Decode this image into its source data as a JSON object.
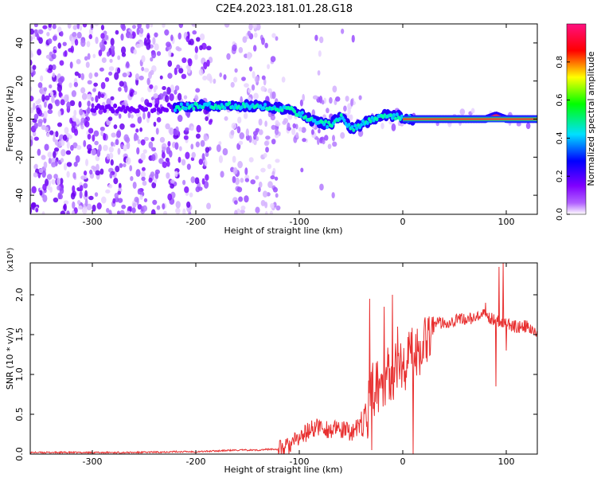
{
  "title": "C2E4.2023.181.01.28.G18",
  "chart_data": [
    {
      "type": "heatmap",
      "xlabel": "Height of straight line (km)",
      "ylabel": "Frequency (Hz)",
      "xlim": [
        -360,
        130
      ],
      "ylim": [
        -50,
        50
      ],
      "x_ticks": [
        -300,
        -200,
        -100,
        0,
        100
      ],
      "x_tick_labels": [
        "-300",
        "-200",
        "-100",
        "0",
        "100"
      ],
      "y_ticks": [
        -40,
        -20,
        0,
        20,
        40
      ],
      "y_tick_labels": [
        "-40",
        "-20",
        "0",
        "20",
        "40"
      ],
      "colorbar": {
        "label": "Normalized spectral amplitude",
        "range": [
          0,
          1
        ],
        "ticks": [
          0.0,
          0.2,
          0.4,
          0.6,
          0.8
        ],
        "tick_labels": [
          "0.0",
          "0.2",
          "0.4",
          "0.6",
          "0.8"
        ],
        "colormap": [
          "#f3e6ff",
          "#8000ff",
          "#0000ff",
          "#00ffff",
          "#00ff00",
          "#ffff00",
          "#ff0000",
          "#ff0080"
        ]
      },
      "ridge": {
        "x": [
          -220,
          -200,
          -180,
          -160,
          -140,
          -120,
          -110,
          -100,
          -90,
          -80,
          -70,
          -60,
          -50,
          -40,
          -30,
          -20,
          -10,
          0,
          10,
          20,
          40,
          60,
          80,
          90,
          100,
          120,
          130
        ],
        "freq": [
          6,
          7,
          7,
          7,
          7,
          6,
          5,
          3,
          0,
          -2,
          -3,
          2,
          -5,
          -3,
          0,
          2,
          2,
          1,
          0,
          0,
          0,
          0,
          0,
          2,
          0,
          0,
          0
        ]
      }
    },
    {
      "type": "line",
      "xlabel": "Height of straight line (km)",
      "ylabel": "SNR (10 * v/v)",
      "scale_label": "(x10⁴)",
      "xlim": [
        -360,
        130
      ],
      "ylim": [
        0,
        2.4
      ],
      "x_ticks": [
        -300,
        -200,
        -100,
        0,
        100
      ],
      "x_tick_labels": [
        "-300",
        "-200",
        "-100",
        "0",
        "100"
      ],
      "y_ticks": [
        0.0,
        0.5,
        1.0,
        1.5,
        2.0
      ],
      "y_tick_labels": [
        "0.0",
        "0.5",
        "1.0",
        "1.5",
        "2.0"
      ],
      "series": [
        {
          "color": "#e83030",
          "x": [
            -360,
            -340,
            -300,
            -260,
            -220,
            -200,
            -180,
            -160,
            -140,
            -130,
            -120,
            -110,
            -100,
            -90,
            -80,
            -70,
            -60,
            -50,
            -40,
            -34,
            -32,
            -30,
            -25,
            -20,
            -15,
            -10,
            -5,
            0,
            5,
            10,
            15,
            20,
            25,
            30,
            35,
            40,
            50,
            60,
            70,
            80,
            85,
            90,
            95,
            100,
            105,
            110,
            120,
            130
          ],
          "y": [
            0.02,
            0.02,
            0.02,
            0.02,
            0.03,
            0.03,
            0.04,
            0.05,
            0.05,
            0.06,
            0.06,
            0.1,
            0.2,
            0.3,
            0.35,
            0.3,
            0.3,
            0.28,
            0.35,
            0.5,
            0.8,
            0.8,
            0.85,
            0.9,
            1.0,
            1.0,
            1.1,
            1.1,
            1.2,
            1.3,
            1.3,
            1.4,
            1.55,
            1.6,
            1.65,
            1.65,
            1.68,
            1.7,
            1.7,
            1.75,
            1.7,
            1.7,
            1.65,
            1.65,
            1.6,
            1.6,
            1.6,
            1.5
          ],
          "spikes": [
            {
              "x": -32,
              "y": 1.95
            },
            {
              "x": -30,
              "y": 0.05
            },
            {
              "x": -18,
              "y": 1.85
            },
            {
              "x": -10,
              "y": 2.0
            },
            {
              "x": -5,
              "y": 1.6
            },
            {
              "x": 10,
              "y": 0.0
            },
            {
              "x": 80,
              "y": 1.9
            },
            {
              "x": 90,
              "y": 0.85
            },
            {
              "x": 93,
              "y": 2.35
            },
            {
              "x": 97,
              "y": 2.4
            },
            {
              "x": 100,
              "y": 1.3
            }
          ]
        }
      ]
    }
  ]
}
